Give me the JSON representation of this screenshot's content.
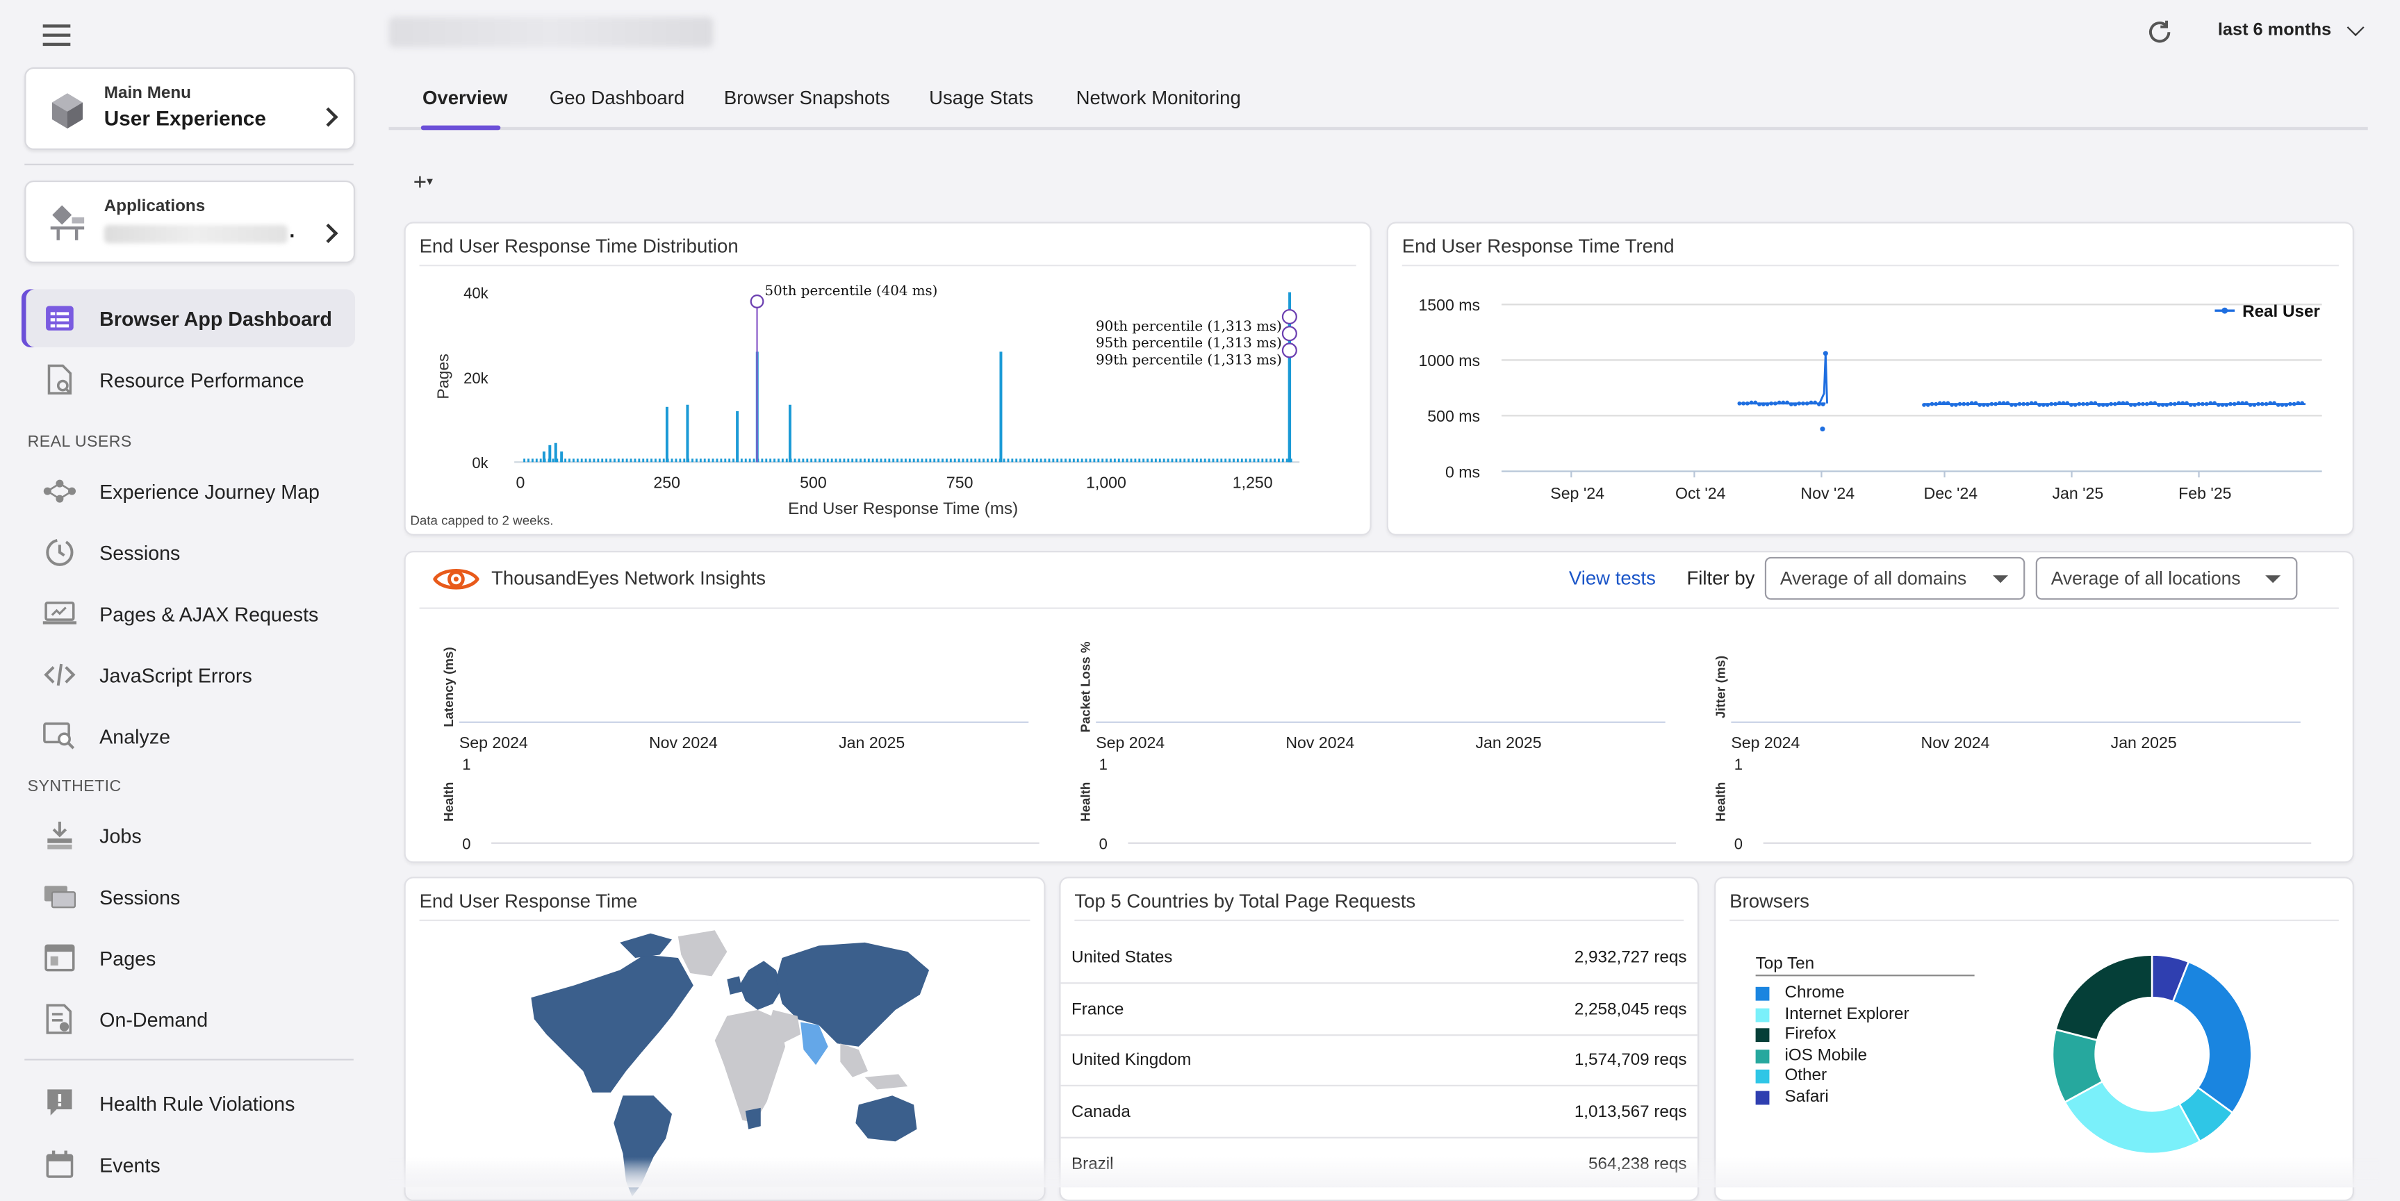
{
  "header": {
    "time_range": "last 6 months"
  },
  "sidebar": {
    "main_menu": {
      "caption": "Main Menu",
      "title": "User Experience"
    },
    "applications": {
      "caption": "Applications",
      "value": "."
    },
    "top_items": [
      {
        "label": "Browser App Dashboard"
      },
      {
        "label": "Resource Performance"
      }
    ],
    "real_users_label": "REAL USERS",
    "real_users": [
      {
        "label": "Experience Journey Map"
      },
      {
        "label": "Sessions"
      },
      {
        "label": "Pages & AJAX Requests"
      },
      {
        "label": "JavaScript Errors"
      },
      {
        "label": "Analyze"
      }
    ],
    "synthetic_label": "SYNTHETIC",
    "synthetic": [
      {
        "label": "Jobs"
      },
      {
        "label": "Sessions"
      },
      {
        "label": "Pages"
      },
      {
        "label": "On-Demand"
      }
    ],
    "bottom_items": [
      {
        "label": "Health Rule Violations"
      },
      {
        "label": "Events"
      }
    ]
  },
  "tabs": [
    {
      "label": "Overview"
    },
    {
      "label": "Geo Dashboard"
    },
    {
      "label": "Browser Snapshots"
    },
    {
      "label": "Usage Stats"
    },
    {
      "label": "Network Monitoring"
    }
  ],
  "toolbar": {
    "add_label": "+",
    "add_caret": "▾"
  },
  "distribution": {
    "title": "End User Response Time Distribution",
    "ylabel": "Pages",
    "xlabel": "End User Response Time (ms)",
    "footnote": "Data capped to 2 weeks.",
    "yticks": [
      "40k",
      "20k",
      "0k"
    ],
    "xticks": [
      "0",
      "250",
      "500",
      "750",
      "1,000",
      "1,250"
    ],
    "annotations": [
      "50th percentile (404 ms)",
      "90th percentile (1,313 ms)",
      "95th percentile (1,313 ms)",
      "99th percentile (1,313 ms)"
    ]
  },
  "trend": {
    "title": "End User Response Time Trend",
    "legend": "Real User",
    "yticks": [
      "1500 ms",
      "1000 ms",
      "500 ms",
      "0 ms"
    ],
    "xticks": [
      "Sep '24",
      "Oct '24",
      "Nov '24",
      "Dec '24",
      "Jan '25",
      "Feb '25"
    ]
  },
  "network": {
    "title": "ThousandEyes Network Insights",
    "view_tests": "View tests",
    "filter_by": "Filter by",
    "domain_select": "Average of all domains",
    "location_select": "Average of all locations",
    "metrics": [
      {
        "ylabel": "Latency (ms)",
        "xticks": [
          "Sep 2024",
          "Nov 2024",
          "Jan 2025"
        ]
      },
      {
        "ylabel": "Packet Loss %",
        "xticks": [
          "Sep 2024",
          "Nov 2024",
          "Jan 2025"
        ]
      },
      {
        "ylabel": "Jitter (ms)",
        "xticks": [
          "Sep 2024",
          "Nov 2024",
          "Jan 2025"
        ]
      }
    ],
    "health_label": "Health",
    "health_top": "1",
    "health_bottom": "0"
  },
  "map_panel": {
    "title": "End User Response Time"
  },
  "countries": {
    "title": "Top 5 Countries by Total Page Requests",
    "rows": [
      {
        "name": "United States",
        "value": "2,932,727 reqs"
      },
      {
        "name": "France",
        "value": "2,258,045 reqs"
      },
      {
        "name": "United Kingdom",
        "value": "1,574,709 reqs"
      },
      {
        "name": "Canada",
        "value": "1,013,567 reqs"
      },
      {
        "name": "Brazil",
        "value": "564,238 reqs"
      }
    ]
  },
  "browsers": {
    "title": "Browsers",
    "legend_title": "Top Ten",
    "items": [
      {
        "name": "Chrome",
        "color": "#1a85e0"
      },
      {
        "name": "Internet Explorer",
        "color": "#7af0fa"
      },
      {
        "name": "Firefox",
        "color": "#053f38"
      },
      {
        "name": "iOS Mobile",
        "color": "#26a89e"
      },
      {
        "name": "Other",
        "color": "#2fc6e6"
      },
      {
        "name": "Safari",
        "color": "#2f3fb0"
      }
    ]
  },
  "chart_data": [
    {
      "type": "bar",
      "title": "End User Response Time Distribution",
      "xlabel": "End User Response Time (ms)",
      "ylabel": "Pages",
      "xlim": [
        0,
        1330
      ],
      "ylim": [
        0,
        40000
      ],
      "x": [
        40,
        50,
        60,
        70,
        250,
        285,
        370,
        404,
        460,
        820,
        1313
      ],
      "values": [
        2500,
        4000,
        4500,
        2500,
        13000,
        13500,
        12000,
        26000,
        13500,
        26000,
        40000
      ],
      "baseline_value": 800,
      "percentiles": [
        {
          "label": "50th percentile (404 ms)",
          "x": 404
        },
        {
          "label": "90th percentile (1,313 ms)",
          "x": 1313
        },
        {
          "label": "95th percentile (1,313 ms)",
          "x": 1313
        },
        {
          "label": "99th percentile (1,313 ms)",
          "x": 1313
        }
      ]
    },
    {
      "type": "line",
      "title": "End User Response Time Trend",
      "ylim": [
        0,
        1500
      ],
      "xticks": [
        "Sep '24",
        "Oct '24",
        "Nov '24",
        "Dec '24",
        "Jan '25",
        "Feb '25"
      ],
      "series": [
        {
          "name": "Real User",
          "segments": [
            {
              "start": "2024-10-12",
              "end": "2024-11-02",
              "value_ms": 610
            },
            {
              "start": "2024-11-26",
              "end": "2025-02-27",
              "value_ms": 605
            }
          ],
          "spikes": [
            {
              "date": "2024-11-02",
              "value_ms": 1060
            },
            {
              "date": "2024-11-02",
              "value_ms": 380
            }
          ]
        }
      ]
    },
    {
      "type": "pie",
      "title": "Browsers",
      "categories": [
        "Chrome",
        "Internet Explorer",
        "Firefox",
        "iOS Mobile",
        "Other",
        "Safari"
      ],
      "values": [
        29,
        25,
        21,
        12,
        7,
        6
      ]
    }
  ]
}
